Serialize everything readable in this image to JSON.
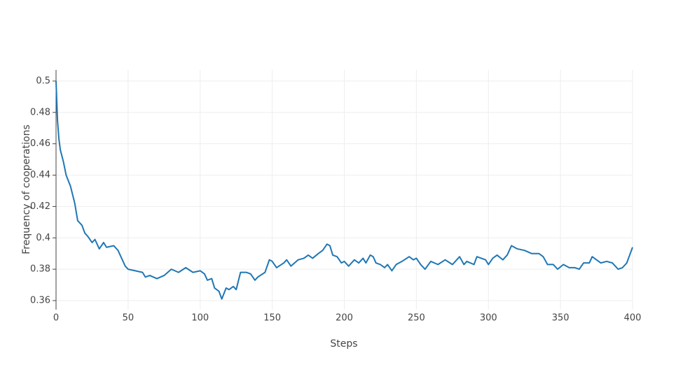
{
  "chart_data": {
    "type": "line",
    "x_label": "Steps",
    "y_label": "Frequency of cooperations",
    "xlim": [
      0,
      400
    ],
    "ylim": [
      0.3542,
      0.5071
    ],
    "xticks": [
      0,
      50,
      100,
      150,
      200,
      250,
      300,
      350,
      400
    ],
    "yticks": [
      0.36,
      0.38,
      0.4,
      0.42,
      0.44,
      0.46,
      0.48,
      0.5
    ],
    "grid": true,
    "x": [
      0,
      1,
      2,
      3,
      5,
      7,
      10,
      13,
      15,
      18,
      20,
      22,
      25,
      27,
      30,
      33,
      35,
      40,
      43,
      45,
      48,
      50,
      55,
      60,
      62,
      65,
      70,
      75,
      80,
      85,
      90,
      95,
      100,
      103,
      105,
      108,
      110,
      113,
      115,
      118,
      120,
      123,
      125,
      128,
      132,
      135,
      138,
      140,
      145,
      148,
      150,
      153,
      158,
      160,
      163,
      168,
      172,
      175,
      178,
      182,
      185,
      188,
      190,
      192,
      195,
      198,
      200,
      203,
      207,
      210,
      213,
      215,
      218,
      220,
      222,
      225,
      228,
      230,
      233,
      236,
      240,
      245,
      248,
      250,
      253,
      256,
      260,
      265,
      270,
      275,
      280,
      283,
      285,
      290,
      292,
      295,
      298,
      300,
      303,
      306,
      310,
      313,
      316,
      320,
      325,
      330,
      335,
      338,
      341,
      345,
      348,
      352,
      356,
      360,
      363,
      366,
      370,
      372,
      375,
      378,
      382,
      386,
      390,
      393,
      396,
      398,
      400
    ],
    "series": [
      {
        "name": "Frequency of cooperations",
        "color": "#1f77b4",
        "values": [
          0.5,
          0.475,
          0.463,
          0.456,
          0.449,
          0.44,
          0.433,
          0.422,
          0.411,
          0.408,
          0.403,
          0.401,
          0.397,
          0.399,
          0.393,
          0.397,
          0.394,
          0.395,
          0.392,
          0.388,
          0.382,
          0.38,
          0.379,
          0.378,
          0.375,
          0.376,
          0.374,
          0.376,
          0.38,
          0.378,
          0.381,
          0.378,
          0.379,
          0.377,
          0.373,
          0.374,
          0.368,
          0.366,
          0.361,
          0.368,
          0.367,
          0.369,
          0.367,
          0.378,
          0.378,
          0.377,
          0.373,
          0.375,
          0.378,
          0.386,
          0.385,
          0.381,
          0.384,
          0.386,
          0.382,
          0.386,
          0.387,
          0.389,
          0.387,
          0.39,
          0.392,
          0.396,
          0.395,
          0.389,
          0.388,
          0.384,
          0.385,
          0.382,
          0.386,
          0.384,
          0.387,
          0.384,
          0.389,
          0.388,
          0.384,
          0.383,
          0.381,
          0.383,
          0.379,
          0.383,
          0.385,
          0.388,
          0.386,
          0.387,
          0.383,
          0.38,
          0.385,
          0.383,
          0.386,
          0.383,
          0.388,
          0.383,
          0.385,
          0.383,
          0.388,
          0.387,
          0.386,
          0.383,
          0.387,
          0.389,
          0.386,
          0.389,
          0.395,
          0.393,
          0.392,
          0.39,
          0.39,
          0.388,
          0.383,
          0.383,
          0.38,
          0.383,
          0.381,
          0.381,
          0.38,
          0.384,
          0.384,
          0.388,
          0.386,
          0.384,
          0.385,
          0.384,
          0.38,
          0.381,
          0.384,
          0.389,
          0.394
        ]
      }
    ]
  }
}
